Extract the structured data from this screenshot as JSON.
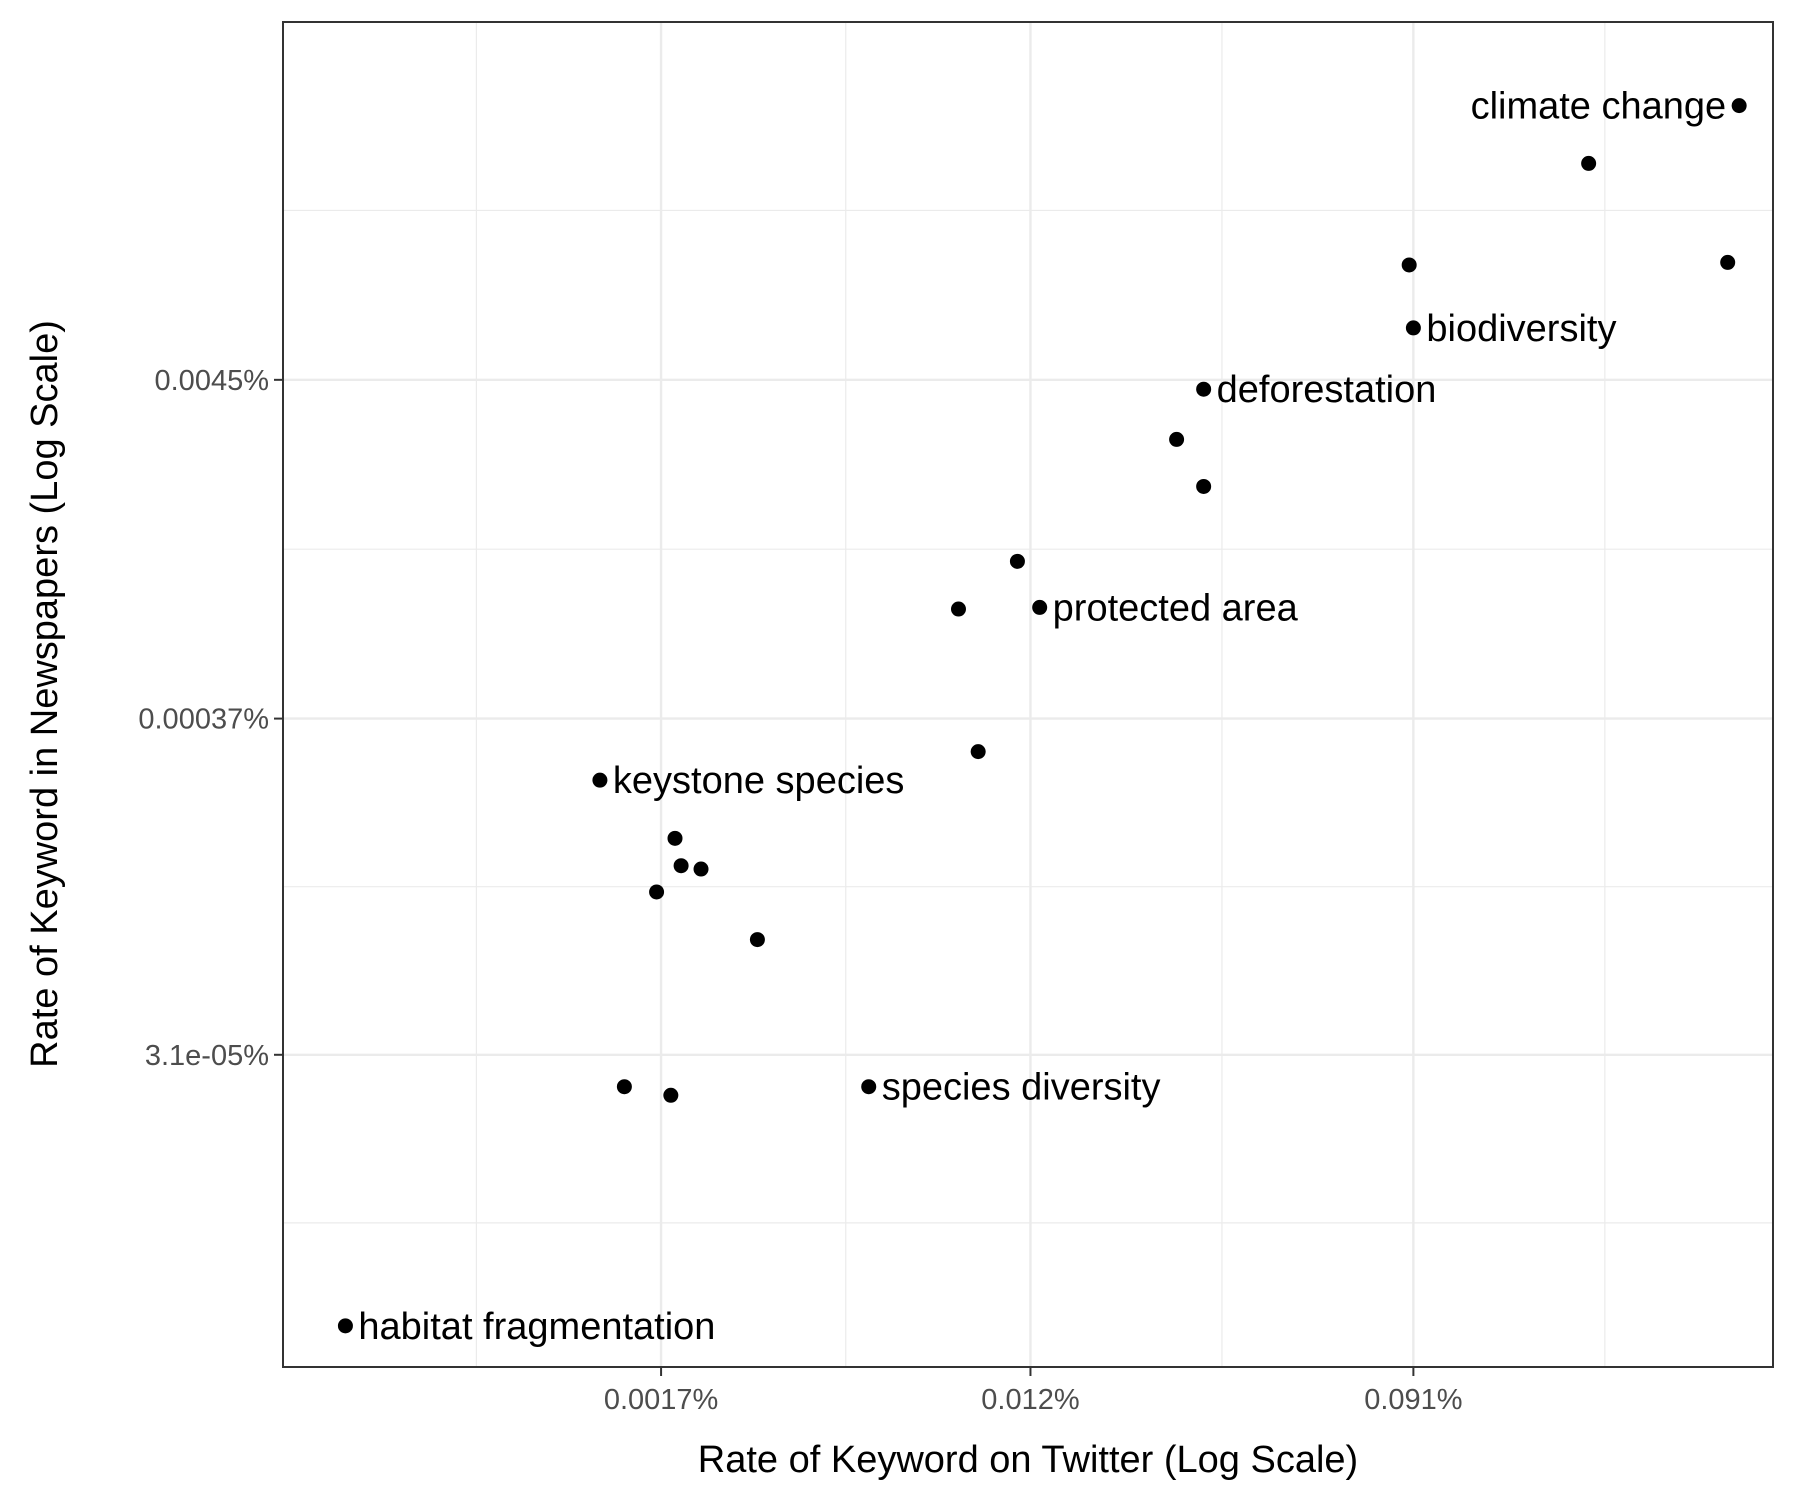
{
  "chart_data": {
    "type": "scatter",
    "title": "",
    "xlabel": "Rate of Keyword on Twitter (Log Scale)",
    "ylabel": "Rate of Keyword in Newspapers (Log Scale)",
    "x_scale": "log",
    "y_scale": "log",
    "x_ticks": [
      {
        "label": "0.0017%",
        "value": 0.0017
      },
      {
        "label": "0.012%",
        "value": 0.012
      },
      {
        "label": "0.091%",
        "value": 0.091
      }
    ],
    "y_ticks": [
      {
        "label": "0.0045%",
        "value": 0.0045
      },
      {
        "label": "0.00037%",
        "value": 0.00037
      },
      {
        "label": "3.1e-05%",
        "value": 3.1e-05
      }
    ],
    "xlim": [
      0.00023,
      0.61
    ],
    "ylim": [
      3.1e-06,
      0.063
    ],
    "grid": true,
    "points": [
      {
        "x": 0.51,
        "y": 0.034,
        "label": "climate change"
      },
      {
        "x": 0.23,
        "y": 0.0222,
        "label": ""
      },
      {
        "x": 0.089,
        "y": 0.0105,
        "label": ""
      },
      {
        "x": 0.48,
        "y": 0.0107,
        "label": ""
      },
      {
        "x": 0.091,
        "y": 0.0066,
        "label": "biodiversity"
      },
      {
        "x": 0.03,
        "y": 0.0042,
        "label": "deforestation"
      },
      {
        "x": 0.026,
        "y": 0.0029,
        "label": ""
      },
      {
        "x": 0.03,
        "y": 0.00205,
        "label": ""
      },
      {
        "x": 0.0112,
        "y": 0.00118,
        "label": ""
      },
      {
        "x": 0.0082,
        "y": 0.00083,
        "label": ""
      },
      {
        "x": 0.0126,
        "y": 0.00084,
        "label": "protected area"
      },
      {
        "x": 0.0091,
        "y": 0.00029,
        "label": ""
      },
      {
        "x": 0.00123,
        "y": 0.000235,
        "label": "keystone species"
      },
      {
        "x": 0.00183,
        "y": 0.000153,
        "label": ""
      },
      {
        "x": 0.00189,
        "y": 0.000125,
        "label": ""
      },
      {
        "x": 0.0021,
        "y": 0.000122,
        "label": ""
      },
      {
        "x": 0.00166,
        "y": 0.000103,
        "label": ""
      },
      {
        "x": 0.00283,
        "y": 7.25e-05,
        "label": ""
      },
      {
        "x": 0.0014,
        "y": 2.45e-05,
        "label": ""
      },
      {
        "x": 0.00179,
        "y": 2.3e-05,
        "label": ""
      },
      {
        "x": 0.0051,
        "y": 2.45e-05,
        "label": "species diversity"
      },
      {
        "x": 0.00032,
        "y": 4.2e-06,
        "label": "habitat fragmentation"
      }
    ]
  }
}
